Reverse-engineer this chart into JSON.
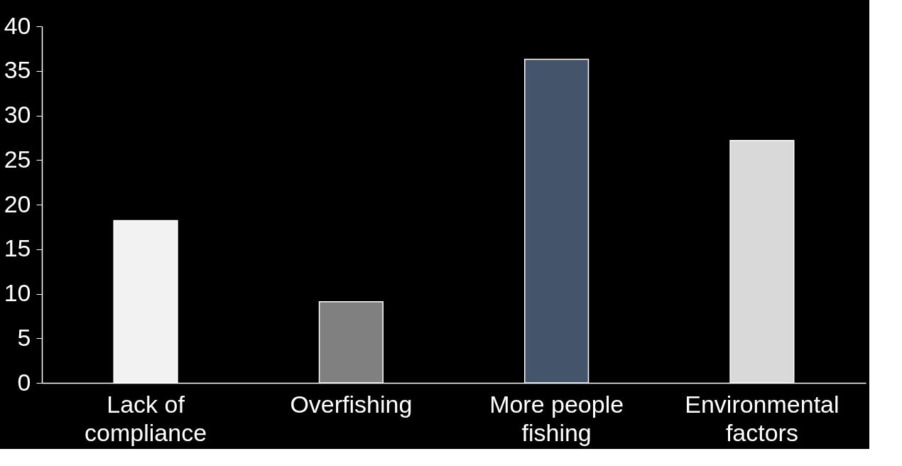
{
  "chart_data": {
    "type": "bar",
    "categories": [
      "Lack of compliance",
      "Overfishing",
      "More people fishing",
      "Environmental factors"
    ],
    "values": [
      18.2,
      9.1,
      36.3,
      27.2
    ],
    "colors": [
      "#f2f2f2",
      "#808080",
      "#44546a",
      "#d9d9d9"
    ],
    "ylim": [
      0,
      40
    ],
    "yticks": [
      0,
      5,
      10,
      15,
      20,
      25,
      30,
      35,
      40
    ],
    "grid": false
  }
}
